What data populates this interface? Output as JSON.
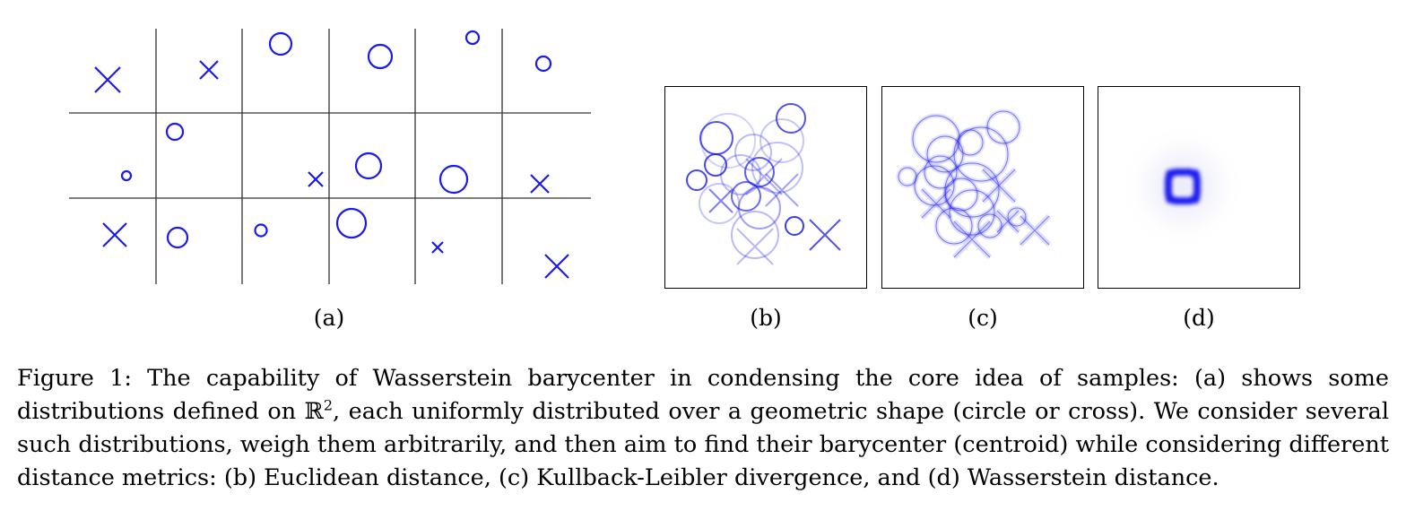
{
  "figure": {
    "panels": {
      "a": {
        "label": "(a)"
      },
      "b": {
        "label": "(b)"
      },
      "c": {
        "label": "(c)"
      },
      "d": {
        "label": "(d)"
      }
    },
    "caption": {
      "prefix": "Figure 1: The capability of Wasserstein barycenter in condensing the core idea of samples: (a) shows some distributions defined on ",
      "space": "ℝ",
      "exponent": "2",
      "suffix": ", each uniformly distributed over a geometric shape (circle or cross). We consider several such distributions, weigh them arbitrarily, and then aim to find their barycenter (centroid) while considering different distance metrics: (b) Euclidean distance, (c) Kullback-Leibler divergence, and (d) Wasserstein distance."
    },
    "shape_color": "#1a1aee"
  }
}
